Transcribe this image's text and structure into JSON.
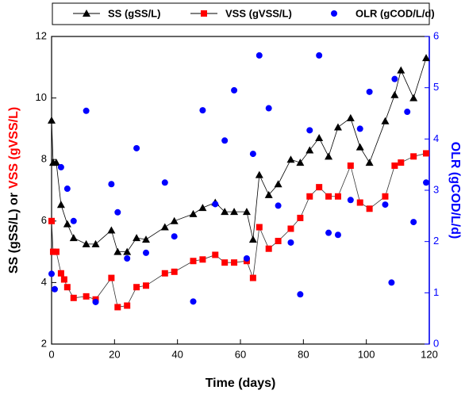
{
  "chart_data": {
    "type": "scatter",
    "x_label": "Time (days)",
    "y_label_parts": [
      {
        "text": "SS (gSS/L) or",
        "color": "#000000"
      },
      {
        "text": "VSS (gVSS/L)",
        "color": "#ff0000"
      }
    ],
    "y2_label": "OLR (gCOD/L/d)",
    "y2_color": "#0000ff",
    "xlim": [
      0,
      120
    ],
    "xticks": [
      0,
      20,
      40,
      60,
      80,
      100,
      120
    ],
    "ylim": [
      2,
      12
    ],
    "yticks": [
      2,
      4,
      6,
      8,
      10,
      12
    ],
    "y2lim": [
      0,
      6
    ],
    "y2ticks": [
      0,
      1,
      2,
      3,
      4,
      5,
      6
    ],
    "series": [
      {
        "name": "SS (gSS/L)",
        "color": "#000000",
        "marker": "triangle",
        "line": true,
        "x": [
          0,
          0.5,
          1.5,
          3,
          5,
          7,
          11,
          14,
          19,
          21,
          24,
          27,
          30,
          36,
          39,
          45,
          48,
          52,
          55,
          58,
          62,
          64,
          66,
          69,
          72,
          76,
          79,
          82,
          85,
          88,
          91,
          95,
          98,
          101,
          106,
          109,
          111,
          115,
          119
        ],
        "values": [
          9.27,
          7.9,
          7.9,
          6.53,
          5.9,
          5.45,
          5.25,
          5.25,
          5.7,
          5.0,
          5.0,
          5.45,
          5.4,
          5.8,
          6.0,
          6.23,
          6.43,
          6.6,
          6.3,
          6.3,
          6.3,
          5.4,
          7.5,
          6.85,
          7.2,
          8.0,
          7.9,
          8.3,
          8.7,
          8.1,
          9.05,
          9.35,
          8.4,
          7.9,
          9.25,
          10.1,
          10.9,
          10.0,
          11.3
        ]
      },
      {
        "name": "VSS (gVSS/L)",
        "color": "#ff0000",
        "marker": "square",
        "line": true,
        "x": [
          0,
          0.5,
          1.5,
          3,
          4,
          5,
          7,
          11,
          14,
          19,
          21,
          24,
          27,
          30,
          36,
          39,
          45,
          48,
          52,
          55,
          58,
          62,
          64,
          66,
          69,
          72,
          76,
          79,
          82,
          85,
          88,
          91,
          95,
          98,
          101,
          106,
          109,
          111,
          115,
          119
        ],
        "values": [
          6.0,
          5.0,
          5.0,
          4.3,
          4.1,
          3.85,
          3.5,
          3.55,
          3.45,
          4.15,
          3.2,
          3.25,
          3.85,
          3.9,
          4.3,
          4.35,
          4.7,
          4.75,
          4.9,
          4.65,
          4.65,
          4.7,
          4.15,
          5.8,
          5.1,
          5.35,
          5.75,
          6.1,
          6.8,
          7.1,
          6.8,
          6.8,
          7.8,
          6.6,
          6.4,
          6.8,
          7.8,
          7.9,
          8.1,
          8.2
        ]
      },
      {
        "name": "OLR (gCOD/L/d)",
        "color": "#0000ff",
        "marker": "circle",
        "line": false,
        "axis": "y2",
        "x": [
          0,
          1,
          3,
          5,
          7,
          11,
          14,
          19,
          21,
          24,
          27,
          30,
          36,
          39,
          45,
          48,
          52,
          55,
          58,
          62,
          64,
          66,
          69,
          72,
          76,
          79,
          82,
          85,
          88,
          91,
          95,
          98,
          101,
          106,
          108,
          109,
          113,
          115,
          119
        ],
        "values": [
          1.37,
          1.07,
          3.45,
          3.03,
          2.4,
          4.55,
          0.82,
          3.12,
          2.57,
          1.67,
          3.82,
          1.78,
          3.15,
          2.1,
          0.83,
          4.56,
          2.73,
          3.97,
          4.95,
          1.67,
          3.71,
          5.63,
          4.6,
          2.7,
          1.98,
          0.97,
          4.17,
          5.63,
          2.17,
          2.13,
          2.81,
          4.2,
          4.92,
          2.72,
          1.2,
          5.17,
          4.53,
          2.38,
          3.15
        ]
      }
    ]
  }
}
